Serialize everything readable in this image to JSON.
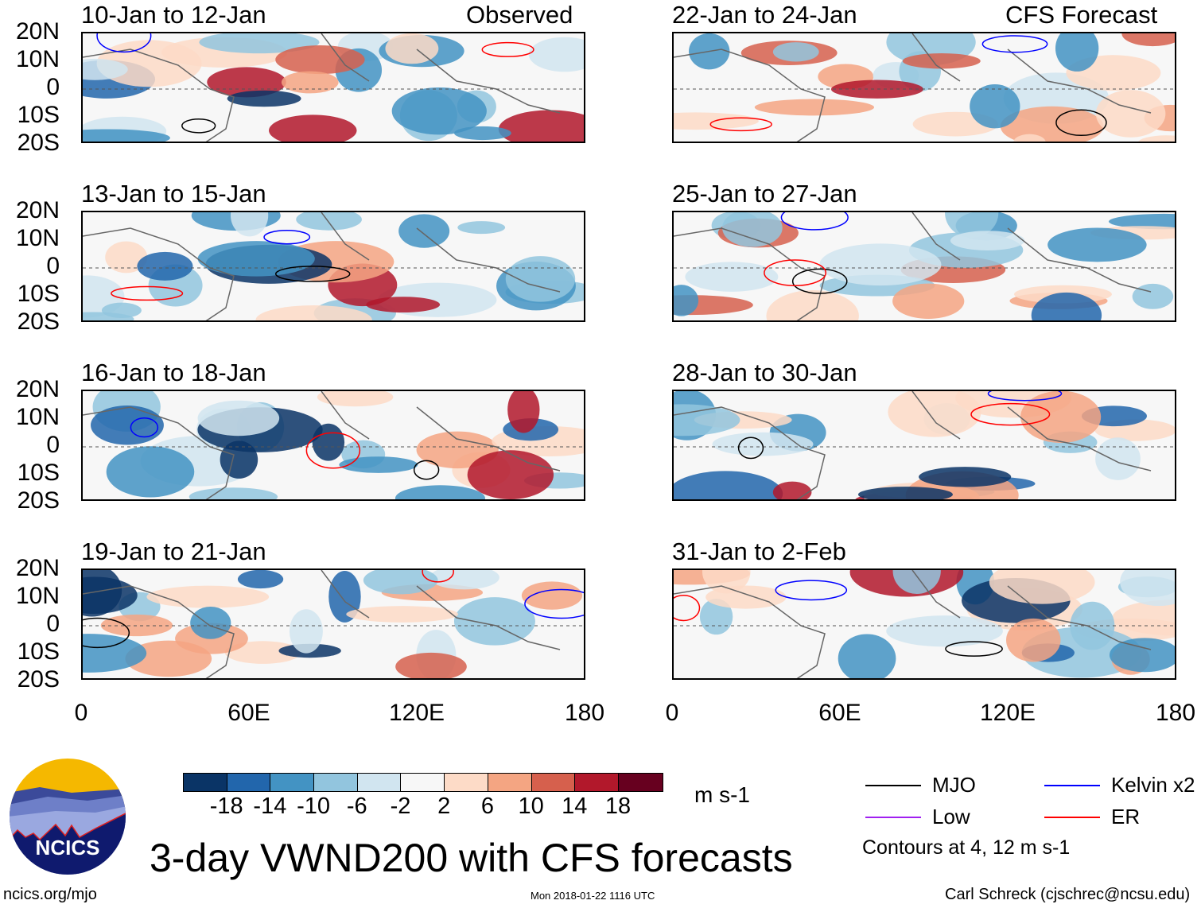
{
  "title": "3-day VWND200 with CFS forecasts",
  "observed_label": "Observed",
  "forecast_label": "CFS Forecast",
  "panels_left": [
    "10-Jan to 12-Jan",
    "13-Jan to 15-Jan",
    "16-Jan to 18-Jan",
    "19-Jan to 21-Jan"
  ],
  "panels_right": [
    "22-Jan to 24-Jan",
    "25-Jan to 27-Jan",
    "28-Jan to 30-Jan",
    "31-Jan to 2-Feb"
  ],
  "lat_labels": [
    "20N",
    "10N",
    "0",
    "10S",
    "20S"
  ],
  "lon_labels": [
    "0",
    "60E",
    "120E",
    "180"
  ],
  "colorbar": {
    "labels": [
      "-18",
      "-14",
      "-10",
      "-6",
      "-2",
      "2",
      "6",
      "10",
      "14",
      "18"
    ],
    "colors": [
      "#0a3466",
      "#2266ac",
      "#4393c3",
      "#92c5de",
      "#d1e5f0",
      "#f7f7f7",
      "#fddbc7",
      "#f4a582",
      "#d6604d",
      "#b2182b",
      "#67001f"
    ],
    "units": "m s-1"
  },
  "legend": [
    {
      "label": "MJO",
      "color": "#000000"
    },
    {
      "label": "Kelvin x2",
      "color": "#0000ff"
    },
    {
      "label": "Low",
      "color": "#a020f0"
    },
    {
      "label": "ER",
      "color": "#ff0000"
    }
  ],
  "contours_note": "Contours at 4, 12 m s-1",
  "logo_text": "NCICS",
  "footer": {
    "url": "ncics.org/mjo",
    "timestamp": "Mon 2018-01-22 1116 UTC",
    "credit": "Carl Schreck (cjschrec@ncsu.edu)"
  }
}
